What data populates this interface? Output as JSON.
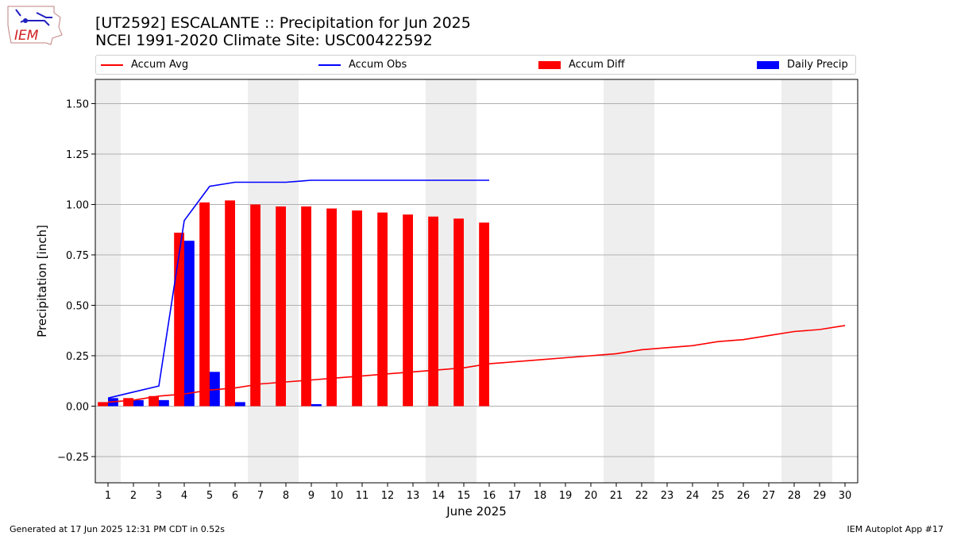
{
  "header": {
    "title_line1": "[UT2592] ESCALANTE :: Precipitation for Jun 2025",
    "title_line2": "NCEI 1991-2020 Climate Site: USC00422592"
  },
  "logo": {
    "text": "IEM"
  },
  "footer": {
    "generated": "Generated at 17 Jun 2025 12:31 PM CDT in 0.52s",
    "app": "IEM Autoplot App #17"
  },
  "colors": {
    "accum_avg": "#ff0000",
    "accum_obs": "#0000ff",
    "accum_diff": "#ff0000",
    "daily_precip": "#0000ff",
    "weekend_band": "#eeeeee",
    "grid": "#b0b0b0"
  },
  "chart_data": {
    "type": "bar",
    "title": "[UT2592] ESCALANTE :: Precipitation for Jun 2025",
    "subtitle": "NCEI 1991-2020 Climate Site: USC00422592",
    "xlabel": "June 2025",
    "ylabel": "Precipitation [inch]",
    "xlim": [
      0.5,
      30.5
    ],
    "ylim": [
      -0.38,
      1.62
    ],
    "yticks": [
      -0.25,
      0.0,
      0.25,
      0.5,
      0.75,
      1.0,
      1.25,
      1.5
    ],
    "ytick_labels": [
      "−0.25",
      "0.00",
      "0.25",
      "0.50",
      "0.75",
      "1.00",
      "1.25",
      "1.50"
    ],
    "xticks": [
      1,
      2,
      3,
      4,
      5,
      6,
      7,
      8,
      9,
      10,
      11,
      12,
      13,
      14,
      15,
      16,
      17,
      18,
      19,
      20,
      21,
      22,
      23,
      24,
      25,
      26,
      27,
      28,
      29,
      30
    ],
    "grid": "horizontal",
    "legend_position": "top",
    "weekend_days": [
      1,
      7,
      8,
      14,
      15,
      21,
      22,
      28,
      29
    ],
    "series": [
      {
        "name": "Accum Avg",
        "kind": "line",
        "x": [
          1,
          2,
          3,
          4,
          5,
          6,
          7,
          8,
          9,
          10,
          11,
          12,
          13,
          14,
          15,
          16,
          17,
          18,
          19,
          20,
          21,
          22,
          23,
          24,
          25,
          26,
          27,
          28,
          29,
          30
        ],
        "values": [
          0.02,
          0.03,
          0.05,
          0.06,
          0.08,
          0.09,
          0.11,
          0.12,
          0.13,
          0.14,
          0.15,
          0.16,
          0.17,
          0.18,
          0.19,
          0.21,
          0.22,
          0.23,
          0.24,
          0.25,
          0.26,
          0.28,
          0.29,
          0.3,
          0.32,
          0.33,
          0.35,
          0.37,
          0.38,
          0.4
        ]
      },
      {
        "name": "Accum Obs",
        "kind": "line",
        "x": [
          1,
          2,
          3,
          4,
          5,
          6,
          7,
          8,
          9,
          10,
          11,
          12,
          13,
          14,
          15,
          16
        ],
        "values": [
          0.04,
          0.07,
          0.1,
          0.92,
          1.09,
          1.11,
          1.11,
          1.11,
          1.12,
          1.12,
          1.12,
          1.12,
          1.12,
          1.12,
          1.12,
          1.12
        ]
      },
      {
        "name": "Accum Diff",
        "kind": "bar",
        "x": [
          1,
          2,
          3,
          4,
          5,
          6,
          7,
          8,
          9,
          10,
          11,
          12,
          13,
          14,
          15,
          16
        ],
        "values": [
          0.02,
          0.04,
          0.05,
          0.86,
          1.01,
          1.02,
          1.0,
          0.99,
          0.99,
          0.98,
          0.97,
          0.96,
          0.95,
          0.94,
          0.93,
          0.91
        ]
      },
      {
        "name": "Daily Precip",
        "kind": "bar",
        "x": [
          1,
          2,
          3,
          4,
          5,
          6,
          7,
          8,
          9,
          10,
          11,
          12,
          13,
          14,
          15,
          16
        ],
        "values": [
          0.04,
          0.03,
          0.03,
          0.82,
          0.17,
          0.02,
          0.0,
          0.0,
          0.01,
          0.0,
          0.0,
          0.0,
          0.0,
          0.0,
          0.0,
          0.0
        ]
      }
    ]
  }
}
